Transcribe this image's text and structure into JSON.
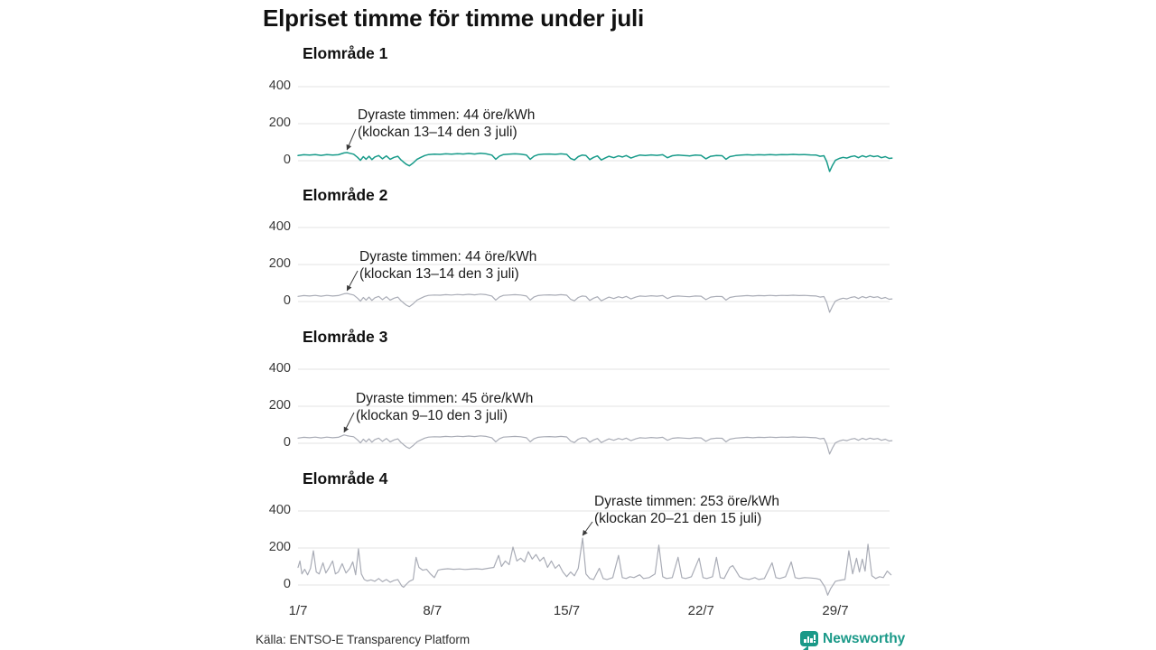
{
  "title": "Elpriset timme för timme under juli",
  "colors": {
    "teal": "#189b8a",
    "gray": "#a9acb6",
    "gridline": "#e3e3e3",
    "arrow": "#3a3a3a",
    "brand": "#1a9988"
  },
  "footer": {
    "source": "Källa: ENTSO-E Transparency Platform",
    "brand": "Newsworthy"
  },
  "chart_data": {
    "type": "line",
    "title": "Elpriset timme för timme under juli",
    "x_unit": "day of July",
    "xticks": [
      1,
      8,
      15,
      22,
      29
    ],
    "xticklabels": [
      "1/7",
      "8/7",
      "15/7",
      "22/7",
      "29/7"
    ],
    "yticks": [
      0,
      200,
      400
    ],
    "ylim": [
      -75,
      460
    ],
    "xlim": [
      1,
      31.96
    ],
    "grid": true,
    "panels": [
      {
        "title": "Elområde 1",
        "color_key": "teal",
        "annotation": {
          "line1": "Dyraste timmen: 44 öre/kWh",
          "line2": "(klockan 13–14 den 3 juli)",
          "target_day": 3.55,
          "target_value": 44
        },
        "x": [
          1.0,
          1.3,
          1.6,
          1.9,
          2.2,
          2.5,
          2.8,
          3.1,
          3.4,
          3.55,
          3.7,
          3.9,
          4.1,
          4.25,
          4.4,
          4.55,
          4.7,
          4.85,
          5.0,
          5.2,
          5.4,
          5.6,
          5.8,
          6.0,
          6.2,
          6.35,
          6.5,
          6.65,
          6.8,
          7.0,
          7.2,
          7.4,
          7.6,
          7.8,
          8.1,
          8.4,
          8.7,
          9.0,
          9.3,
          9.6,
          9.9,
          10.2,
          10.5,
          10.8,
          11.1,
          11.3,
          11.5,
          11.7,
          12.0,
          12.3,
          12.6,
          12.9,
          13.1,
          13.3,
          13.5,
          13.8,
          14.1,
          14.4,
          14.7,
          15.0,
          15.2,
          15.4,
          15.6,
          15.8,
          16.0,
          16.2,
          16.4,
          16.6,
          16.8,
          17.0,
          17.2,
          17.45,
          17.7,
          17.9,
          18.1,
          18.35,
          18.6,
          18.8,
          19.1,
          19.4,
          19.7,
          20.0,
          20.25,
          20.5,
          20.8,
          21.1,
          21.4,
          21.7,
          22.0,
          22.25,
          22.5,
          22.8,
          23.1,
          23.3,
          23.5,
          23.8,
          24.1,
          24.4,
          24.7,
          25.0,
          25.3,
          25.6,
          25.9,
          26.2,
          26.5,
          26.8,
          27.1,
          27.4,
          27.7,
          28.0,
          28.2,
          28.4,
          28.55,
          28.7,
          28.85,
          29.0,
          29.2,
          29.4,
          29.6,
          29.8,
          30.0,
          30.2,
          30.4,
          30.6,
          30.8,
          31.0,
          31.2,
          31.4,
          31.6,
          31.8,
          31.95
        ],
        "y": [
          28,
          32,
          30,
          33,
          29,
          33,
          30,
          32,
          42,
          44,
          40,
          35,
          18,
          2,
          22,
          8,
          24,
          6,
          20,
          28,
          10,
          26,
          8,
          18,
          24,
          6,
          -8,
          -20,
          -28,
          -12,
          8,
          18,
          28,
          33,
          35,
          34,
          37,
          35,
          38,
          36,
          39,
          36,
          40,
          37,
          30,
          8,
          25,
          33,
          35,
          37,
          35,
          30,
          8,
          25,
          32,
          35,
          36,
          34,
          37,
          34,
          12,
          4,
          22,
          30,
          28,
          6,
          18,
          26,
          4,
          14,
          24,
          16,
          26,
          20,
          28,
          14,
          24,
          30,
          28,
          31,
          29,
          32,
          16,
          27,
          30,
          28,
          26,
          30,
          29,
          10,
          24,
          28,
          27,
          8,
          22,
          28,
          30,
          32,
          30,
          32,
          31,
          33,
          31,
          33,
          32,
          34,
          32,
          33,
          31,
          30,
          24,
          27,
          -5,
          -58,
          -25,
          2,
          12,
          18,
          14,
          22,
          26,
          16,
          27,
          20,
          28,
          22,
          26,
          16,
          22,
          12,
          14
        ]
      },
      {
        "title": "Elområde 2",
        "color_key": "gray",
        "annotation": {
          "line1": "Dyraste timmen: 44 öre/kWh",
          "line2": "(klockan 13–14 den 3 juli)",
          "target_day": 3.55,
          "target_value": 44
        },
        "x": [
          1.0,
          1.3,
          1.6,
          1.9,
          2.2,
          2.5,
          2.8,
          3.1,
          3.4,
          3.55,
          3.7,
          3.9,
          4.1,
          4.25,
          4.4,
          4.55,
          4.7,
          4.85,
          5.0,
          5.2,
          5.4,
          5.6,
          5.8,
          6.0,
          6.2,
          6.35,
          6.5,
          6.65,
          6.8,
          7.0,
          7.2,
          7.4,
          7.6,
          7.8,
          8.1,
          8.4,
          8.7,
          9.0,
          9.3,
          9.6,
          9.9,
          10.2,
          10.5,
          10.8,
          11.1,
          11.3,
          11.5,
          11.7,
          12.0,
          12.3,
          12.6,
          12.9,
          13.1,
          13.3,
          13.5,
          13.8,
          14.1,
          14.4,
          14.7,
          15.0,
          15.2,
          15.4,
          15.6,
          15.8,
          16.0,
          16.2,
          16.4,
          16.6,
          16.8,
          17.0,
          17.2,
          17.45,
          17.7,
          17.9,
          18.1,
          18.35,
          18.6,
          18.8,
          19.1,
          19.4,
          19.7,
          20.0,
          20.25,
          20.5,
          20.8,
          21.1,
          21.4,
          21.7,
          22.0,
          22.25,
          22.5,
          22.8,
          23.1,
          23.3,
          23.5,
          23.8,
          24.1,
          24.4,
          24.7,
          25.0,
          25.3,
          25.6,
          25.9,
          26.2,
          26.5,
          26.8,
          27.1,
          27.4,
          27.7,
          28.0,
          28.2,
          28.4,
          28.55,
          28.7,
          28.85,
          29.0,
          29.2,
          29.4,
          29.6,
          29.8,
          30.0,
          30.2,
          30.4,
          30.6,
          30.8,
          31.0,
          31.2,
          31.4,
          31.6,
          31.8,
          31.95
        ],
        "y": [
          28,
          32,
          30,
          33,
          29,
          33,
          30,
          32,
          42,
          44,
          40,
          35,
          18,
          2,
          22,
          8,
          24,
          6,
          20,
          28,
          10,
          26,
          8,
          18,
          24,
          6,
          -8,
          -20,
          -28,
          -12,
          8,
          18,
          28,
          33,
          35,
          34,
          37,
          35,
          38,
          36,
          39,
          36,
          40,
          37,
          30,
          8,
          25,
          33,
          35,
          37,
          35,
          30,
          8,
          25,
          32,
          35,
          36,
          34,
          37,
          34,
          12,
          4,
          22,
          30,
          28,
          6,
          18,
          26,
          4,
          14,
          24,
          16,
          26,
          20,
          28,
          14,
          24,
          30,
          28,
          31,
          29,
          32,
          16,
          27,
          30,
          28,
          26,
          30,
          29,
          10,
          24,
          28,
          27,
          8,
          22,
          28,
          30,
          32,
          30,
          32,
          31,
          33,
          31,
          33,
          32,
          34,
          32,
          33,
          31,
          30,
          24,
          27,
          -5,
          -58,
          -25,
          2,
          12,
          18,
          14,
          22,
          26,
          16,
          27,
          20,
          28,
          22,
          26,
          16,
          22,
          12,
          14
        ]
      },
      {
        "title": "Elområde 3",
        "color_key": "gray",
        "annotation": {
          "line1": "Dyraste timmen: 45 öre/kWh",
          "line2": "(klockan 9–10 den 3 juli)",
          "target_day": 3.4,
          "target_value": 45
        },
        "x": [
          1.0,
          1.3,
          1.6,
          1.9,
          2.2,
          2.5,
          2.8,
          3.1,
          3.4,
          3.55,
          3.7,
          3.9,
          4.1,
          4.25,
          4.4,
          4.55,
          4.7,
          4.85,
          5.0,
          5.2,
          5.4,
          5.6,
          5.8,
          6.0,
          6.2,
          6.35,
          6.5,
          6.65,
          6.8,
          7.0,
          7.2,
          7.4,
          7.6,
          7.8,
          8.1,
          8.4,
          8.7,
          9.0,
          9.3,
          9.6,
          9.9,
          10.2,
          10.5,
          10.8,
          11.1,
          11.3,
          11.5,
          11.7,
          12.0,
          12.3,
          12.6,
          12.9,
          13.1,
          13.3,
          13.5,
          13.8,
          14.1,
          14.4,
          14.7,
          15.0,
          15.2,
          15.4,
          15.6,
          15.8,
          16.0,
          16.2,
          16.4,
          16.6,
          16.8,
          17.0,
          17.2,
          17.45,
          17.7,
          17.9,
          18.1,
          18.35,
          18.6,
          18.8,
          19.1,
          19.4,
          19.7,
          20.0,
          20.25,
          20.5,
          20.8,
          21.1,
          21.4,
          21.7,
          22.0,
          22.25,
          22.5,
          22.8,
          23.1,
          23.3,
          23.5,
          23.8,
          24.1,
          24.4,
          24.7,
          25.0,
          25.3,
          25.6,
          25.9,
          26.2,
          26.5,
          26.8,
          27.1,
          27.4,
          27.7,
          28.0,
          28.2,
          28.4,
          28.55,
          28.7,
          28.85,
          29.0,
          29.2,
          29.4,
          29.6,
          29.8,
          30.0,
          30.2,
          30.4,
          30.6,
          30.8,
          31.0,
          31.2,
          31.4,
          31.6,
          31.8,
          31.95
        ],
        "y": [
          28,
          32,
          30,
          33,
          29,
          33,
          30,
          32,
          45,
          41,
          38,
          35,
          18,
          2,
          22,
          8,
          24,
          6,
          20,
          28,
          10,
          26,
          8,
          18,
          24,
          6,
          -8,
          -20,
          -28,
          -12,
          8,
          18,
          28,
          33,
          35,
          34,
          37,
          35,
          38,
          36,
          39,
          36,
          40,
          37,
          30,
          8,
          25,
          33,
          35,
          37,
          35,
          30,
          8,
          25,
          32,
          35,
          36,
          34,
          37,
          34,
          12,
          4,
          22,
          30,
          28,
          6,
          18,
          26,
          4,
          14,
          24,
          16,
          26,
          20,
          28,
          14,
          24,
          30,
          28,
          31,
          29,
          32,
          16,
          27,
          30,
          28,
          26,
          30,
          29,
          10,
          24,
          28,
          27,
          8,
          22,
          28,
          30,
          32,
          30,
          32,
          31,
          33,
          31,
          33,
          32,
          34,
          32,
          33,
          31,
          30,
          24,
          27,
          -5,
          -58,
          -25,
          2,
          12,
          18,
          14,
          22,
          26,
          16,
          27,
          20,
          28,
          22,
          26,
          16,
          22,
          12,
          14
        ]
      },
      {
        "title": "Elområde 4",
        "color_key": "gray",
        "annotation": {
          "line1": "Dyraste timmen: 253 öre/kWh",
          "line2": "(klockan 20–21 den 15 juli)",
          "target_day": 15.83,
          "target_value": 253
        },
        "x": [
          1.0,
          1.1,
          1.2,
          1.35,
          1.5,
          1.65,
          1.8,
          1.95,
          2.1,
          2.3,
          2.45,
          2.6,
          2.8,
          2.95,
          3.1,
          3.3,
          3.5,
          3.7,
          3.85,
          4.0,
          4.15,
          4.3,
          4.45,
          4.6,
          4.8,
          5.0,
          5.2,
          5.4,
          5.6,
          5.8,
          6.0,
          6.2,
          6.4,
          6.5,
          6.65,
          6.8,
          7.0,
          7.15,
          7.3,
          7.5,
          7.7,
          7.9,
          8.1,
          8.3,
          8.5,
          8.8,
          9.1,
          9.4,
          9.7,
          10.0,
          10.3,
          10.6,
          10.9,
          11.2,
          11.45,
          11.6,
          11.8,
          12.0,
          12.2,
          12.4,
          12.6,
          12.8,
          13.0,
          13.2,
          13.4,
          13.6,
          13.8,
          14.0,
          14.2,
          14.4,
          14.6,
          14.8,
          15.0,
          15.2,
          15.4,
          15.6,
          15.83,
          16.0,
          16.2,
          16.4,
          16.7,
          16.9,
          17.1,
          17.4,
          17.7,
          17.9,
          18.1,
          18.3,
          18.5,
          18.8,
          19.0,
          19.3,
          19.6,
          19.8,
          20.0,
          20.2,
          20.5,
          20.8,
          21.0,
          21.2,
          21.5,
          21.9,
          22.1,
          22.3,
          22.6,
          22.8,
          23.0,
          23.2,
          23.5,
          23.65,
          23.8,
          24.0,
          24.2,
          24.5,
          24.8,
          25.0,
          25.3,
          25.7,
          25.9,
          26.1,
          26.4,
          26.7,
          26.9,
          27.1,
          27.4,
          27.7,
          28.0,
          28.2,
          28.45,
          28.6,
          28.75,
          29.0,
          29.2,
          29.5,
          29.7,
          29.9,
          30.1,
          30.25,
          30.4,
          30.55,
          30.7,
          30.9,
          31.1,
          31.3,
          31.5,
          31.7,
          31.9
        ],
        "y": [
          95,
          130,
          60,
          85,
          55,
          90,
          185,
          70,
          60,
          120,
          65,
          90,
          130,
          60,
          70,
          115,
          65,
          90,
          125,
          55,
          195,
          60,
          30,
          22,
          28,
          20,
          35,
          18,
          30,
          15,
          25,
          30,
          -5,
          -12,
          5,
          20,
          30,
          150,
          95,
          80,
          85,
          60,
          40,
          80,
          85,
          88,
          85,
          87,
          84,
          86,
          88,
          85,
          90,
          95,
          160,
          100,
          130,
          110,
          205,
          130,
          145,
          125,
          180,
          140,
          165,
          130,
          150,
          95,
          130,
          90,
          110,
          70,
          45,
          70,
          50,
          90,
          253,
          60,
          35,
          30,
          90,
          35,
          30,
          40,
          160,
          40,
          35,
          45,
          40,
          55,
          35,
          40,
          60,
          215,
          45,
          35,
          40,
          150,
          40,
          35,
          45,
          145,
          40,
          35,
          45,
          150,
          40,
          35,
          95,
          105,
          80,
          45,
          35,
          30,
          40,
          30,
          35,
          120,
          40,
          35,
          45,
          125,
          40,
          35,
          40,
          38,
          35,
          30,
          -10,
          -55,
          -20,
          20,
          25,
          30,
          185,
          60,
          145,
          70,
          140,
          75,
          220,
          50,
          35,
          45,
          40,
          75,
          55
        ]
      }
    ]
  }
}
